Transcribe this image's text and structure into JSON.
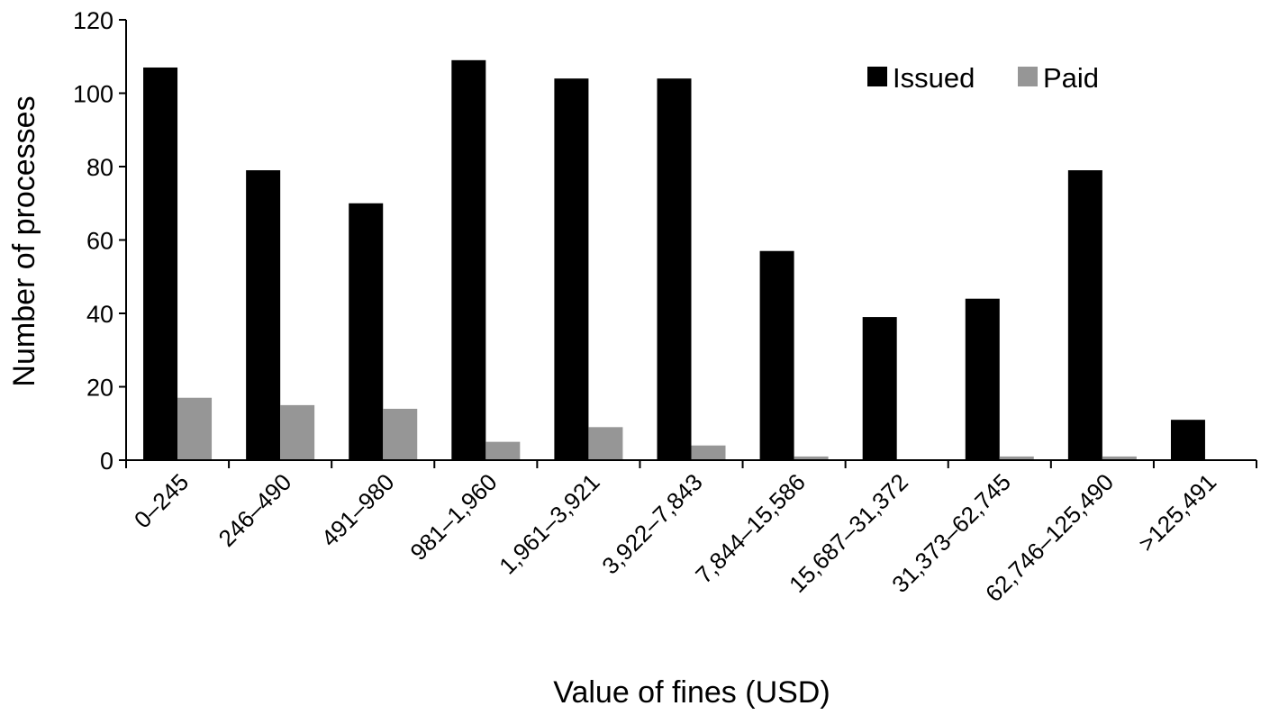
{
  "chart_data": {
    "type": "bar",
    "title": "",
    "xlabel": "Value of fines (USD)",
    "ylabel": "Number of processes",
    "ylim": [
      0,
      120
    ],
    "yticks": [
      0,
      20,
      40,
      60,
      80,
      100,
      120
    ],
    "grid": false,
    "legend_position": "top-right",
    "categories": [
      "0–245",
      "246–490",
      "491–980",
      "981–1,960",
      "1,961–3,921",
      "3,922–7,843",
      "7,844–15,586",
      "15,687–31,372",
      "31,373–62,745",
      "62,746–125,490",
      ">125,491"
    ],
    "series": [
      {
        "name": "Issued",
        "color": "#000000",
        "values": [
          107,
          79,
          70,
          109,
          104,
          104,
          57,
          39,
          44,
          79,
          11
        ]
      },
      {
        "name": "Paid",
        "color": "#969696",
        "values": [
          17,
          15,
          14,
          5,
          9,
          4,
          1,
          0,
          1,
          1,
          0
        ]
      }
    ]
  }
}
